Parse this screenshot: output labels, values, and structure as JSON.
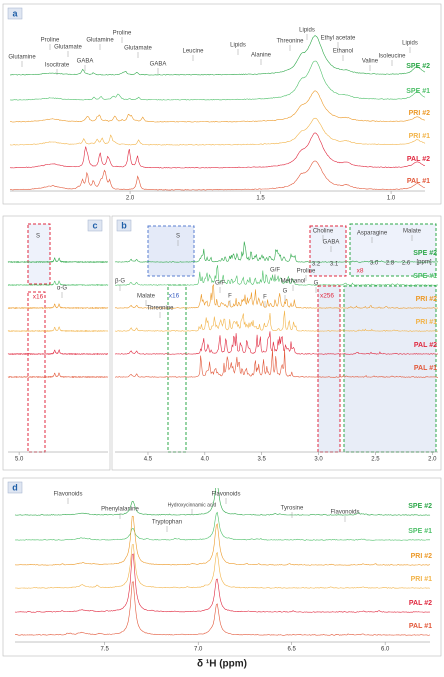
{
  "axis_title": "δ ¹H (ppm)",
  "samples": [
    {
      "name": "SPE #2",
      "color": "#2ea84a"
    },
    {
      "name": "SPE #1",
      "color": "#4fc06a"
    },
    {
      "name": "PRI #2",
      "color": "#ec9a2a"
    },
    {
      "name": "PRI #1",
      "color": "#f2b44a"
    },
    {
      "name": "PAL #2",
      "color": "#e0283f"
    },
    {
      "name": "PAL #1",
      "color": "#e2583a"
    }
  ],
  "panels": [
    {
      "label": "a",
      "xlim": [
        2.46,
        0.87
      ],
      "xticks": [
        {
          "value": 2,
          "label": "2.0"
        },
        {
          "value": 1.5,
          "label": "1.5"
        },
        {
          "value": 1,
          "label": "1.0"
        }
      ],
      "annotations": [
        "Glutamine",
        "Isocitrate",
        "Proline",
        "Glutamate",
        "GABA",
        "Glutamine",
        "Proline",
        "Glutamate",
        "GABA",
        "Leucine",
        "Lipids",
        "Alanine",
        "Threonine",
        "Lipids",
        "Ethyl acetate",
        "Ethanol",
        "Valine",
        "Isoleucine",
        "Lipids"
      ]
    },
    {
      "label": "c",
      "xlim": [
        5.1,
        4.2
      ],
      "xticks": [
        {
          "value": 5,
          "label": "5.0"
        }
      ],
      "annotations": [
        "S",
        "x16",
        "α-G"
      ]
    },
    {
      "label": "b",
      "xlim": [
        4.79,
        1.95
      ],
      "xticks": [
        {
          "value": 4.5,
          "label": "4.5"
        },
        {
          "value": 4,
          "label": "4.0"
        },
        {
          "value": 3.5,
          "label": "3.5"
        },
        {
          "value": 3,
          "label": "3.0"
        },
        {
          "value": 2.5,
          "label": "2.5"
        },
        {
          "value": 2,
          "label": "2.0"
        }
      ],
      "annotations": [
        "β-G",
        "Malate",
        "Threonine",
        "S",
        "x16",
        "F",
        "G/F",
        "F",
        "G/F",
        "G",
        "Methanol",
        "Proline",
        "G",
        "Choline",
        "GABA",
        "x256",
        "Asparagine",
        "Malate",
        "x8",
        "[ppm]",
        "3.2",
        "3.1",
        "3.0",
        "2.8",
        "2.6"
      ]
    },
    {
      "label": "d",
      "xlim": [
        7.98,
        5.76
      ],
      "xticks": [
        {
          "value": 7.5,
          "label": "7.5"
        },
        {
          "value": 7,
          "label": "7.0"
        },
        {
          "value": 6.5,
          "label": "6.5"
        },
        {
          "value": 6,
          "label": "6.0"
        }
      ],
      "annotations": [
        "Flavonoids",
        "Phenylalanine",
        "Tryptophan",
        "Hydroxycinnamic acid",
        "Flavonoids",
        "Tyrosine",
        "Flavonoids"
      ]
    }
  ]
}
